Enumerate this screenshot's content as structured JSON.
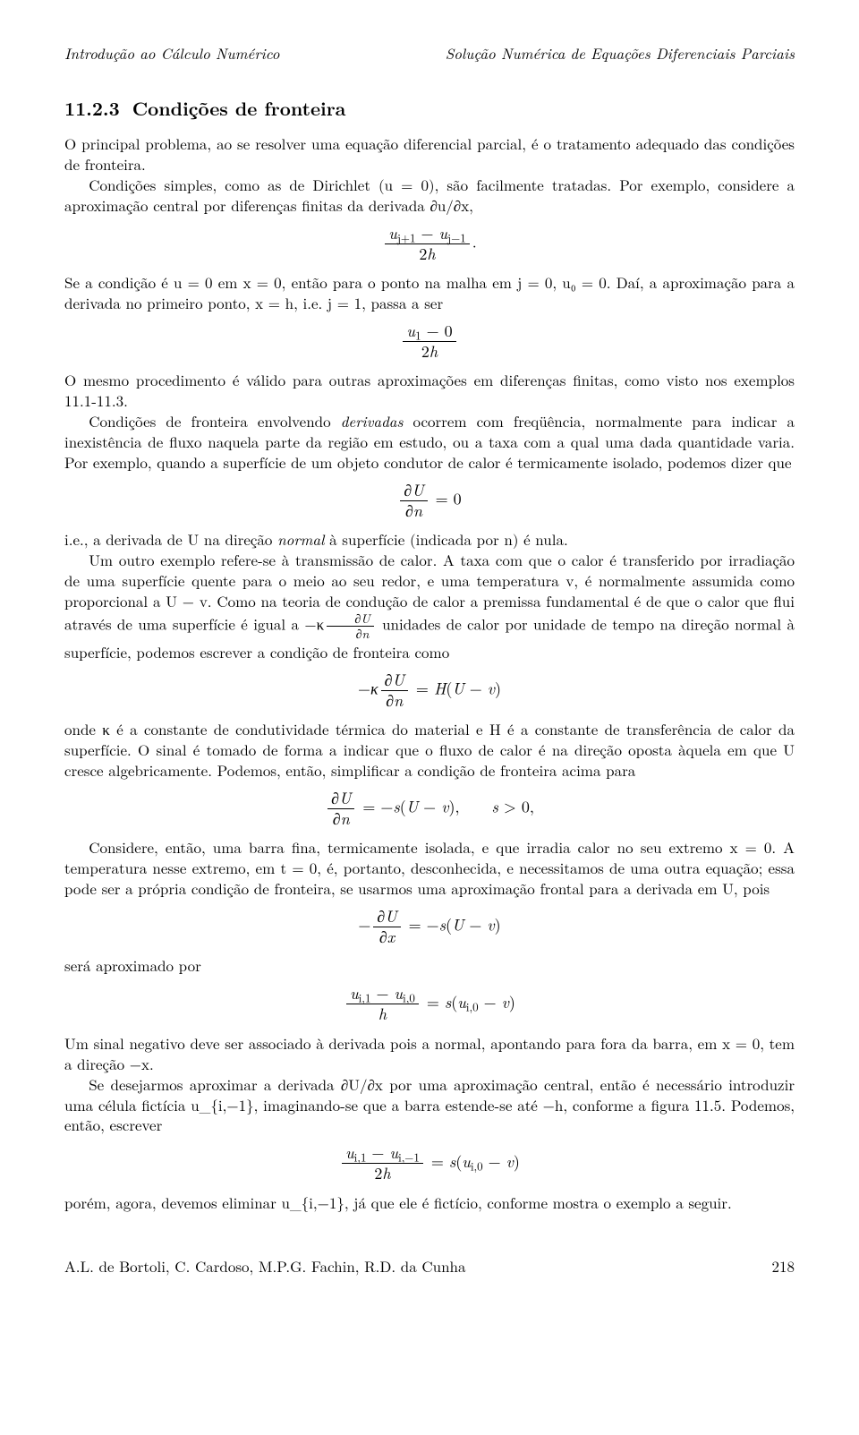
{
  "header": {
    "left": "Introdução ao Cálculo Numérico",
    "right": "Solução Numérica de Equações Diferenciais Parciais"
  },
  "section": {
    "number": "11.2.3",
    "title": "Condições de fronteira"
  },
  "p1a": "O principal problema, ao se resolver uma equação diferencial parcial, é o tratamento adequado das condições de fronteira.",
  "p1b": "Condições simples, como as de Dirichlet (u = 0), são facilmente tratadas. Por exemplo, considere a aproximação central por diferenças finitas da derivada ∂u/∂x,",
  "eq1": {
    "num": "u_{j+1} − u_{j−1}",
    "den": "2h",
    "tail": "."
  },
  "p2": "Se a condição é u = 0 em x = 0, então para o ponto na malha em j = 0, u₀ = 0. Daí, a aproximação para a derivada no primeiro ponto, x = h, i.e. j = 1, passa a ser",
  "eq2": {
    "num": "u₁ − 0",
    "den": "2h"
  },
  "p3": "O mesmo procedimento é válido para outras aproximações em diferenças finitas, como visto nos exemplos 11.1-11.3.",
  "p4a": "Condições de fronteira envolvendo ",
  "p4em": "derivadas",
  "p4b": " ocorrem com freqüência, normalmente para indicar a inexistência de fluxo naquela parte da região em estudo, ou a taxa com a qual uma dada quantidade varia. Por exemplo, quando a superfície de um objeto condutor de calor é termicamente isolado, podemos dizer que",
  "eq3": {
    "lhs_num": "∂U",
    "lhs_den": "∂n",
    "rhs": " = 0"
  },
  "p5a": "i.e., a derivada de U na direção ",
  "p5em": "normal",
  "p5b": " à superfície (indicada por n) é nula.",
  "p6": "Um outro exemplo refere-se à transmissão de calor. A taxa com que o calor é transferido por irradiação de uma superfície quente para o meio ao seu redor, e uma temperatura v, é normalmente assumida como proporcional a U − v. Como na teoria de condução de calor a premissa fundamental é de que o calor que flui através de uma superfície é igual a −κ",
  "p6frac": {
    "num": "∂U",
    "den": "∂n"
  },
  "p6b": " unidades de calor por unidade de tempo na direção normal à superfície, podemos escrever a condição de fronteira como",
  "eq4": {
    "pre": "−κ",
    "num": "∂U",
    "den": "∂n",
    "rhs": " = H(U − v)"
  },
  "p7": "onde κ é a constante de condutividade térmica do material e H é a constante de transferência de calor da superfície. O sinal é tomado de forma a indicar que o fluxo de calor é na direção oposta àquela em que U cresce algebricamente. Podemos, então, simplificar a condição de fronteira acima para",
  "eq5": {
    "num": "∂U",
    "den": "∂n",
    "rhs": " = −s(U − v),    s > 0,"
  },
  "p8": "Considere, então, uma barra fina, termicamente isolada, e que irradia calor no seu extremo x = 0. A temperatura nesse extremo, em t = 0, é, portanto, desconhecida, e necessitamos de uma outra equação; essa pode ser a própria condição de fronteira, se usarmos uma aproximação frontal para a derivada em U, pois",
  "eq6": {
    "pre": "−",
    "num": "∂U",
    "den": "∂x",
    "rhs": " = −s(U − v)"
  },
  "p9": "será aproximado por",
  "eq7": {
    "num": "u_{i,1} − u_{i,0}",
    "den": "h",
    "rhs": " = s(u_{i,0} − v)"
  },
  "p10": "Um sinal negativo deve ser associado à derivada pois a normal, apontando para fora da barra, em x = 0, tem a direção −x.",
  "p11": "Se desejarmos aproximar a derivada ∂U/∂x por uma aproximação central, então é necessário introduzir uma célula fictícia u_{i,−1}, imaginando-se que a barra estende-se até −h, conforme a figura 11.5. Podemos, então, escrever",
  "eq8": {
    "num": "u_{i,1} − u_{i,−1}",
    "den": "2h",
    "rhs": " = s(u_{i,0} − v)"
  },
  "p12": "porém, agora, devemos eliminar u_{i,−1}, já que ele é fictício, conforme mostra o exemplo a seguir.",
  "footer": {
    "authors": "A.L. de Bortoli, C. Cardoso, M.P.G. Fachin, R.D. da Cunha",
    "page": "218"
  }
}
